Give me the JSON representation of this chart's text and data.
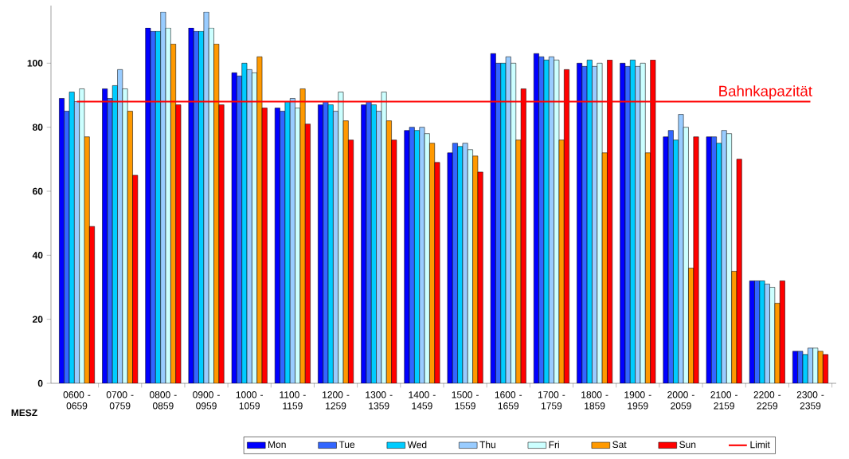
{
  "chart_data": {
    "type": "bar",
    "categories": [
      "0600 - 0659",
      "0700 - 0759",
      "0800 - 0859",
      "0900 - 0959",
      "1000 - 1059",
      "1100 - 1159",
      "1200 - 1259",
      "1300 - 1359",
      "1400 - 1459",
      "1500 - 1559",
      "1600 - 1659",
      "1700 - 1759",
      "1800 - 1859",
      "1900 - 1959",
      "2000 - 2059",
      "2100 - 2159",
      "2200 - 2259",
      "2300 - 2359"
    ],
    "series": [
      {
        "name": "Mon",
        "color": "#0000ff",
        "values": [
          89,
          92,
          111,
          111,
          97,
          86,
          87,
          87,
          79,
          72,
          103,
          103,
          100,
          100,
          77,
          77,
          32,
          10
        ]
      },
      {
        "name": "Tue",
        "color": "#3366ff",
        "values": [
          85,
          89,
          110,
          110,
          96,
          85,
          88,
          88,
          80,
          75,
          100,
          102,
          99,
          99,
          79,
          77,
          32,
          10
        ]
      },
      {
        "name": "Wed",
        "color": "#00ccff",
        "values": [
          91,
          93,
          110,
          110,
          100,
          88,
          87,
          87,
          79,
          74,
          100,
          101,
          101,
          101,
          76,
          75,
          32,
          9
        ]
      },
      {
        "name": "Thu",
        "color": "#99ccff",
        "values": [
          88,
          98,
          116,
          116,
          98,
          89,
          85,
          85,
          80,
          75,
          102,
          102,
          99,
          99,
          84,
          79,
          31,
          11
        ]
      },
      {
        "name": "Fri",
        "color": "#ccffff",
        "values": [
          92,
          92,
          111,
          111,
          97,
          86,
          91,
          91,
          78,
          73,
          100,
          101,
          100,
          100,
          80,
          78,
          30,
          11
        ]
      },
      {
        "name": "Sat",
        "color": "#ff9900",
        "values": [
          77,
          85,
          106,
          106,
          102,
          92,
          82,
          82,
          75,
          71,
          76,
          76,
          72,
          72,
          36,
          35,
          25,
          10
        ]
      },
      {
        "name": "Sun",
        "color": "#ff0000",
        "values": [
          49,
          65,
          87,
          87,
          86,
          81,
          76,
          76,
          69,
          66,
          92,
          98,
          101,
          101,
          77,
          70,
          32,
          9
        ]
      },
      {
        "name": "Limit",
        "type": "line",
        "color": "#ff0000",
        "values": [
          88,
          88,
          88,
          88,
          88,
          88,
          88,
          88,
          88,
          88,
          88,
          88,
          88,
          88,
          88,
          88,
          88,
          88
        ]
      }
    ],
    "xlabel": "MESZ",
    "annotations": [
      "Bahnkapazität"
    ],
    "ylim": [
      0,
      118
    ],
    "yticks": [
      0,
      20,
      40,
      60,
      80,
      100
    ],
    "legend": "bottom"
  }
}
